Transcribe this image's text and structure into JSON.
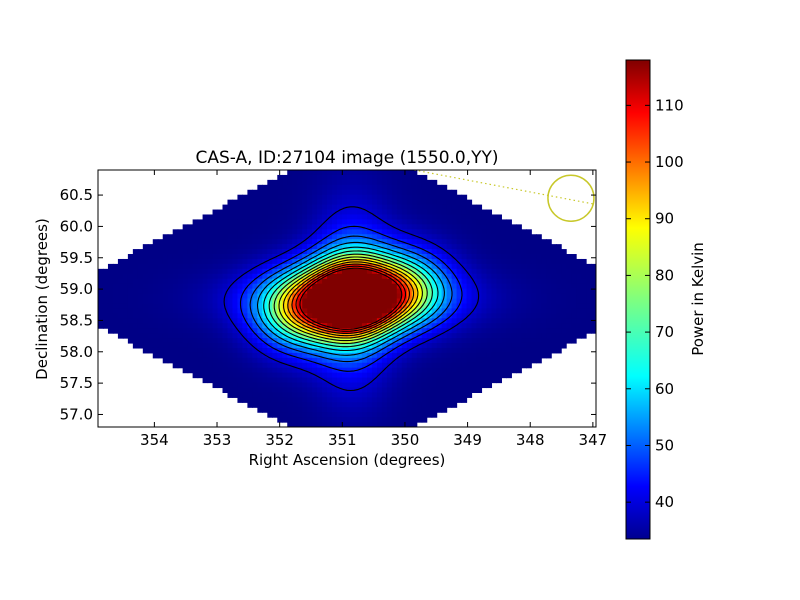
{
  "chart_data": {
    "type": "heatmap",
    "title": "CAS-A, ID:27104 image (1550.0,YY)",
    "xlabel": "Right Ascension (degrees)",
    "ylabel": "Declination (degrees)",
    "xlim": [
      354.9,
      346.95
    ],
    "ylim": [
      56.8,
      60.9
    ],
    "x_ticks": [
      354,
      353,
      352,
      351,
      350,
      349,
      348,
      347
    ],
    "y_ticks": [
      57.0,
      57.5,
      58.0,
      58.5,
      59.0,
      59.5,
      60.0,
      60.5
    ],
    "x_tick_labels": [
      "354",
      "353",
      "352",
      "351",
      "350",
      "349",
      "348",
      "347"
    ],
    "y_tick_labels": [
      "57.0",
      "57.5",
      "58.0",
      "58.5",
      "59.0",
      "59.5",
      "60.0",
      "60.5"
    ],
    "colorbar": {
      "label": "Power in Kelvin",
      "range": [
        33.5,
        118
      ],
      "ticks": [
        40,
        50,
        60,
        70,
        80,
        90,
        100,
        110
      ],
      "tick_labels": [
        "40",
        "50",
        "60",
        "70",
        "80",
        "90",
        "100",
        "110"
      ],
      "colormap": "jet"
    },
    "source": {
      "name": "CAS-A",
      "center_ra": 350.85,
      "center_dec": 58.85,
      "peak_value": 118,
      "background_value": 34
    },
    "contour_levels": [
      40,
      46,
      52,
      58,
      64,
      70,
      76,
      82,
      88,
      94,
      100,
      106,
      112
    ],
    "beam_marker": {
      "ra": 347.35,
      "dec": 60.45,
      "color": "#c8c82a"
    },
    "valid_region": "diamond",
    "grid": false
  }
}
